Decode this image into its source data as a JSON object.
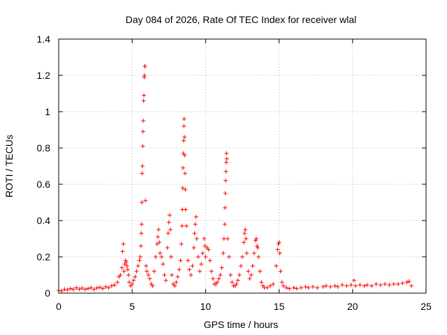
{
  "chart_data": {
    "type": "scatter",
    "title": "Day 084 of 2026, Rate Of TEC Index for receiver wlal",
    "xlabel": "GPS time / hours",
    "ylabel": "ROTI / TECUs",
    "xlim": [
      0,
      25
    ],
    "ylim": [
      0,
      1.4
    ],
    "xticks": [
      0,
      5,
      10,
      15,
      20,
      25
    ],
    "xtick_labels": [
      "0",
      "5",
      "10",
      "15",
      "20",
      "25"
    ],
    "yticks": [
      0,
      0.2,
      0.4,
      0.6,
      0.8,
      1.0,
      1.2,
      1.4
    ],
    "ytick_labels": [
      "0",
      "0.2",
      "0.4",
      "0.6",
      "0.8",
      "1",
      "1.2",
      "1.4"
    ],
    "grid": true,
    "marker": "+",
    "marker_color": "#ff0000",
    "series": [
      {
        "name": "ROTI",
        "points": [
          [
            0.0,
            0.015
          ],
          [
            0.2,
            0.012
          ],
          [
            0.4,
            0.02
          ],
          [
            0.6,
            0.018
          ],
          [
            0.8,
            0.025
          ],
          [
            1.0,
            0.02
          ],
          [
            1.2,
            0.03
          ],
          [
            1.4,
            0.022
          ],
          [
            1.6,
            0.028
          ],
          [
            1.8,
            0.02
          ],
          [
            2.0,
            0.025
          ],
          [
            2.2,
            0.03
          ],
          [
            2.4,
            0.02
          ],
          [
            2.6,
            0.028
          ],
          [
            2.8,
            0.032
          ],
          [
            3.0,
            0.025
          ],
          [
            3.2,
            0.035
          ],
          [
            3.4,
            0.03
          ],
          [
            3.6,
            0.04
          ],
          [
            3.8,
            0.045
          ],
          [
            4.0,
            0.06
          ],
          [
            4.1,
            0.09
          ],
          [
            4.2,
            0.1
          ],
          [
            4.3,
            0.14
          ],
          [
            4.35,
            0.23
          ],
          [
            4.4,
            0.27
          ],
          [
            4.45,
            0.12
          ],
          [
            4.5,
            0.16
          ],
          [
            4.55,
            0.18
          ],
          [
            4.6,
            0.17
          ],
          [
            4.65,
            0.15
          ],
          [
            4.7,
            0.13
          ],
          [
            4.75,
            0.1
          ],
          [
            4.8,
            0.06
          ],
          [
            4.9,
            0.04
          ],
          [
            5.0,
            0.05
          ],
          [
            5.1,
            0.07
          ],
          [
            5.2,
            0.09
          ],
          [
            5.3,
            0.12
          ],
          [
            5.4,
            0.15
          ],
          [
            5.5,
            0.18
          ],
          [
            5.55,
            0.2
          ],
          [
            5.6,
            0.26
          ],
          [
            5.62,
            0.33
          ],
          [
            5.64,
            0.38
          ],
          [
            5.66,
            0.5
          ],
          [
            5.68,
            0.66
          ],
          [
            5.7,
            0.7
          ],
          [
            5.72,
            0.81
          ],
          [
            5.74,
            0.89
          ],
          [
            5.76,
            0.95
          ],
          [
            5.78,
            1.06
          ],
          [
            5.8,
            1.09
          ],
          [
            5.82,
            1.19
          ],
          [
            5.84,
            1.2
          ],
          [
            5.86,
            1.25
          ],
          [
            5.88,
            1.25
          ],
          [
            5.9,
            0.51
          ],
          [
            5.95,
            0.15
          ],
          [
            6.0,
            0.12
          ],
          [
            6.1,
            0.1
          ],
          [
            6.2,
            0.08
          ],
          [
            6.3,
            0.05
          ],
          [
            6.4,
            0.04
          ],
          [
            6.5,
            0.12
          ],
          [
            6.6,
            0.2
          ],
          [
            6.7,
            0.27
          ],
          [
            6.75,
            0.31
          ],
          [
            6.8,
            0.35
          ],
          [
            6.85,
            0.28
          ],
          [
            6.9,
            0.22
          ],
          [
            7.0,
            0.2
          ],
          [
            7.1,
            0.16
          ],
          [
            7.2,
            0.1
          ],
          [
            7.3,
            0.07
          ],
          [
            7.4,
            0.25
          ],
          [
            7.45,
            0.33
          ],
          [
            7.5,
            0.39
          ],
          [
            7.55,
            0.43
          ],
          [
            7.6,
            0.35
          ],
          [
            7.65,
            0.2
          ],
          [
            7.7,
            0.1
          ],
          [
            7.8,
            0.05
          ],
          [
            7.9,
            0.04
          ],
          [
            8.0,
            0.06
          ],
          [
            8.1,
            0.09
          ],
          [
            8.2,
            0.13
          ],
          [
            8.3,
            0.18
          ],
          [
            8.35,
            0.27
          ],
          [
            8.4,
            0.37
          ],
          [
            8.42,
            0.46
          ],
          [
            8.44,
            0.58
          ],
          [
            8.46,
            0.69
          ],
          [
            8.48,
            0.77
          ],
          [
            8.5,
            0.84
          ],
          [
            8.52,
            0.92
          ],
          [
            8.54,
            0.96
          ],
          [
            8.56,
            0.86
          ],
          [
            8.58,
            0.76
          ],
          [
            8.6,
            0.66
          ],
          [
            8.62,
            0.57
          ],
          [
            8.64,
            0.46
          ],
          [
            8.7,
            0.37
          ],
          [
            8.8,
            0.18
          ],
          [
            8.9,
            0.13
          ],
          [
            9.0,
            0.1
          ],
          [
            9.1,
            0.15
          ],
          [
            9.2,
            0.25
          ],
          [
            9.25,
            0.33
          ],
          [
            9.3,
            0.38
          ],
          [
            9.35,
            0.42
          ],
          [
            9.4,
            0.3
          ],
          [
            9.5,
            0.2
          ],
          [
            9.6,
            0.12
          ],
          [
            9.7,
            0.16
          ],
          [
            9.8,
            0.22
          ],
          [
            9.9,
            0.3
          ],
          [
            9.95,
            0.26
          ],
          [
            10.0,
            0.2
          ],
          [
            10.1,
            0.25
          ],
          [
            10.2,
            0.24
          ],
          [
            10.3,
            0.18
          ],
          [
            10.4,
            0.12
          ],
          [
            10.5,
            0.08
          ],
          [
            10.6,
            0.05
          ],
          [
            10.7,
            0.05
          ],
          [
            10.8,
            0.06
          ],
          [
            10.9,
            0.08
          ],
          [
            11.0,
            0.1
          ],
          [
            11.1,
            0.14
          ],
          [
            11.2,
            0.22
          ],
          [
            11.25,
            0.3
          ],
          [
            11.3,
            0.38
          ],
          [
            11.32,
            0.47
          ],
          [
            11.34,
            0.55
          ],
          [
            11.36,
            0.62
          ],
          [
            11.38,
            0.67
          ],
          [
            11.4,
            0.72
          ],
          [
            11.42,
            0.77
          ],
          [
            11.44,
            0.74
          ],
          [
            11.5,
            0.3
          ],
          [
            11.6,
            0.2
          ],
          [
            11.7,
            0.1
          ],
          [
            11.8,
            0.06
          ],
          [
            11.9,
            0.04
          ],
          [
            12.0,
            0.04
          ],
          [
            12.1,
            0.05
          ],
          [
            12.2,
            0.07
          ],
          [
            12.3,
            0.1
          ],
          [
            12.4,
            0.15
          ],
          [
            12.5,
            0.2
          ],
          [
            12.6,
            0.28
          ],
          [
            12.65,
            0.33
          ],
          [
            12.7,
            0.35
          ],
          [
            12.75,
            0.3
          ],
          [
            12.8,
            0.22
          ],
          [
            12.9,
            0.12
          ],
          [
            13.0,
            0.08
          ],
          [
            13.1,
            0.1
          ],
          [
            13.2,
            0.15
          ],
          [
            13.3,
            0.22
          ],
          [
            13.4,
            0.29
          ],
          [
            13.45,
            0.3
          ],
          [
            13.5,
            0.26
          ],
          [
            13.55,
            0.25
          ],
          [
            13.6,
            0.2
          ],
          [
            13.7,
            0.12
          ],
          [
            13.8,
            0.06
          ],
          [
            13.9,
            0.04
          ],
          [
            14.0,
            0.03
          ],
          [
            14.2,
            0.03
          ],
          [
            14.4,
            0.04
          ],
          [
            14.6,
            0.05
          ],
          [
            14.8,
            0.15
          ],
          [
            14.9,
            0.24
          ],
          [
            14.95,
            0.27
          ],
          [
            15.0,
            0.28
          ],
          [
            15.05,
            0.22
          ],
          [
            15.1,
            0.12
          ],
          [
            15.2,
            0.06
          ],
          [
            15.3,
            0.04
          ],
          [
            15.5,
            0.03
          ],
          [
            15.7,
            0.025
          ],
          [
            16.0,
            0.03
          ],
          [
            16.2,
            0.025
          ],
          [
            16.5,
            0.03
          ],
          [
            16.8,
            0.035
          ],
          [
            17.0,
            0.03
          ],
          [
            17.3,
            0.035
          ],
          [
            17.6,
            0.03
          ],
          [
            18.0,
            0.035
          ],
          [
            18.2,
            0.04
          ],
          [
            18.5,
            0.035
          ],
          [
            18.8,
            0.04
          ],
          [
            19.0,
            0.035
          ],
          [
            19.3,
            0.045
          ],
          [
            19.6,
            0.04
          ],
          [
            19.9,
            0.045
          ],
          [
            20.1,
            0.07
          ],
          [
            20.2,
            0.04
          ],
          [
            20.5,
            0.045
          ],
          [
            20.8,
            0.04
          ],
          [
            21.0,
            0.045
          ],
          [
            21.3,
            0.04
          ],
          [
            21.6,
            0.05
          ],
          [
            21.9,
            0.045
          ],
          [
            22.2,
            0.05
          ],
          [
            22.5,
            0.045
          ],
          [
            22.8,
            0.05
          ],
          [
            23.1,
            0.05
          ],
          [
            23.4,
            0.055
          ],
          [
            23.7,
            0.06
          ],
          [
            23.85,
            0.065
          ],
          [
            24.0,
            0.04
          ]
        ]
      }
    ]
  }
}
